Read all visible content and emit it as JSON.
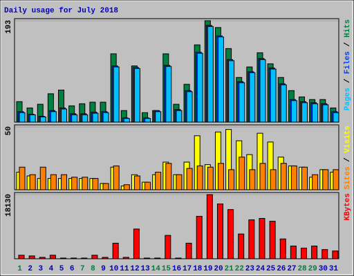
{
  "chart_data": [
    {
      "type": "bar",
      "title": "Daily usage for July 2018",
      "legend_separator": " / ",
      "ylim": [
        0,
        193
      ],
      "yticks": [
        193
      ],
      "series": [
        {
          "name": "Pages",
          "color": "#00c0ff",
          "values": [
            18,
            14,
            10,
            20,
            25,
            14,
            14,
            17,
            18,
            105,
            7,
            102,
            7,
            20,
            106,
            22,
            58,
            131,
            182,
            162,
            117,
            75,
            94,
            119,
            101,
            71,
            41,
            37,
            35,
            33,
            18
          ]
        },
        {
          "name": "Files",
          "color": "#0040ff",
          "values": [
            20,
            15,
            11,
            22,
            27,
            16,
            16,
            19,
            20,
            107,
            8,
            104,
            8,
            22,
            108,
            24,
            60,
            133,
            184,
            164,
            119,
            77,
            96,
            121,
            103,
            73,
            43,
            39,
            37,
            35,
            20
          ]
        },
        {
          "name": "Hits",
          "color": "#008040",
          "values": [
            39,
            27,
            34,
            54,
            61,
            31,
            35,
            38,
            38,
            130,
            22,
            107,
            18,
            22,
            130,
            34,
            72,
            147,
            193,
            180,
            140,
            85,
            105,
            132,
            111,
            85,
            60,
            48,
            43,
            43,
            27
          ]
        }
      ]
    },
    {
      "type": "bar",
      "legend_separator": " / ",
      "ylim": [
        0,
        50
      ],
      "yticks": [
        50
      ],
      "series": [
        {
          "name": "Sites",
          "color": "#ff8000",
          "values": [
            18,
            12,
            18,
            12,
            12,
            10,
            10,
            9,
            5,
            19,
            4,
            11,
            6,
            14,
            21,
            12,
            17,
            19,
            18,
            21,
            16,
            26,
            16,
            21,
            16,
            21,
            19,
            18,
            12,
            16,
            16
          ]
        },
        {
          "name": "Visits",
          "color": "#ffff00",
          "values": [
            14,
            11,
            9,
            9,
            9,
            9,
            9,
            9,
            5,
            18,
            3,
            12,
            6,
            12,
            22,
            12,
            22,
            43,
            20,
            46,
            48,
            39,
            28,
            45,
            38,
            26,
            19,
            18,
            10,
            16,
            14
          ]
        }
      ]
    },
    {
      "type": "bar",
      "ylim": [
        0,
        18130
      ],
      "yticks": [
        18130
      ],
      "categories": [
        "1",
        "2",
        "3",
        "4",
        "5",
        "6",
        "7",
        "8",
        "9",
        "10",
        "11",
        "12",
        "13",
        "14",
        "15",
        "16",
        "17",
        "18",
        "19",
        "20",
        "21",
        "22",
        "23",
        "24",
        "25",
        "26",
        "27",
        "28",
        "29",
        "30",
        "31"
      ],
      "category_colors": [
        "#008040",
        "#0000c0",
        "#0000c0",
        "#0000c0",
        "#0000c0",
        "#0000c0",
        "#008040",
        "#008040",
        "#0000c0",
        "#0000c0",
        "#0000c0",
        "#0000c0",
        "#0000c0",
        "#008040",
        "#008040",
        "#0000c0",
        "#0000c0",
        "#0000c0",
        "#0000c0",
        "#0000c0",
        "#008040",
        "#008040",
        "#0000c0",
        "#0000c0",
        "#0000c0",
        "#0000c0",
        "#0000c0",
        "#008040",
        "#008040",
        "#0000c0",
        "#0000c0"
      ],
      "series": [
        {
          "name": "KBytes",
          "color": "#ff0000",
          "values": [
            1000,
            800,
            400,
            1000,
            200,
            200,
            200,
            1000,
            400,
            4400,
            400,
            8400,
            200,
            200,
            6600,
            200,
            4400,
            12000,
            18130,
            15500,
            13900,
            7000,
            11000,
            11400,
            10600,
            5600,
            3600,
            3000,
            3600,
            2600,
            2200
          ]
        }
      ]
    }
  ]
}
